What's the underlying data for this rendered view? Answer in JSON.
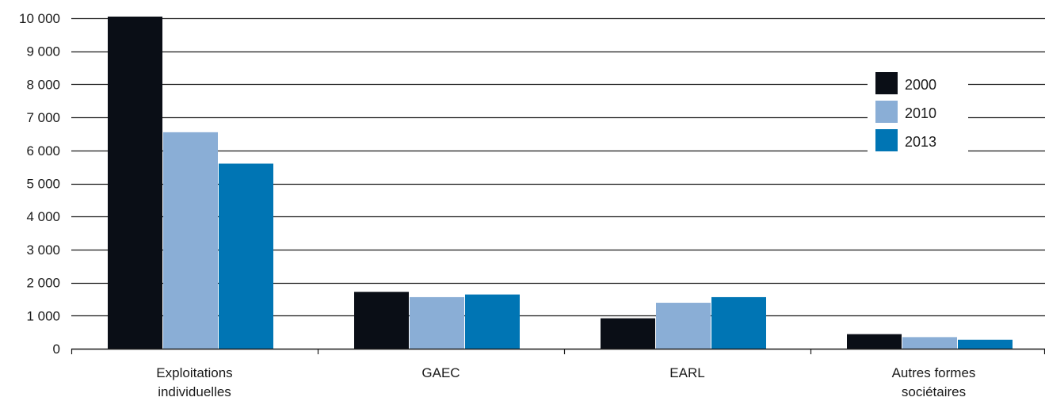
{
  "chart_data": {
    "type": "bar",
    "title": "",
    "xlabel": "",
    "ylabel": "",
    "categories": [
      [
        "Exploitations",
        "individuelles"
      ],
      [
        "GAEC"
      ],
      [
        "EARL"
      ],
      [
        "Autres formes",
        "sociétaires"
      ]
    ],
    "series": [
      {
        "name": "2000",
        "color": "#0a0e16",
        "values": [
          10050,
          1720,
          920,
          440
        ]
      },
      {
        "name": "2010",
        "color": "#8aaed6",
        "values": [
          6550,
          1560,
          1390,
          350
        ]
      },
      {
        "name": "2013",
        "color": "#0075b4",
        "values": [
          5600,
          1640,
          1560,
          270
        ]
      }
    ],
    "ylim": [
      0,
      10000
    ],
    "yticks": [
      0,
      1000,
      2000,
      3000,
      4000,
      5000,
      6000,
      7000,
      8000,
      9000,
      10000
    ],
    "ytick_labels": [
      "0",
      "1 000",
      "2 000",
      "3 000",
      "4 000",
      "5 000",
      "6 000",
      "7 000",
      "8 000",
      "9 000",
      "10 000"
    ],
    "grid": true,
    "legend_position": "top-right"
  }
}
